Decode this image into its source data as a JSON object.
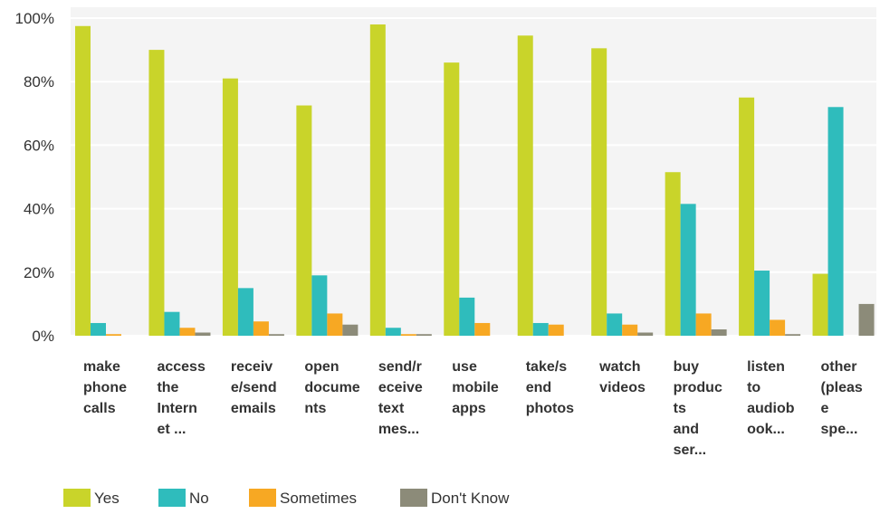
{
  "chart_data": {
    "type": "bar",
    "title": "",
    "xlabel": "",
    "ylabel": "",
    "ylim": [
      0,
      100
    ],
    "yticks": [
      "0%",
      "20%",
      "40%",
      "60%",
      "80%",
      "100%"
    ],
    "ytick_values": [
      0,
      20,
      40,
      60,
      80,
      100
    ],
    "grid": true,
    "legend_position": "bottom-left",
    "categories": [
      [
        "make",
        "phone",
        "calls"
      ],
      [
        "access",
        "the",
        "Intern",
        "et ..."
      ],
      [
        "receiv",
        "e/send",
        "emails"
      ],
      [
        "open",
        "docume",
        "nts"
      ],
      [
        "send/r",
        "eceive",
        "text",
        "mes..."
      ],
      [
        "use",
        "mobile",
        "apps"
      ],
      [
        "take/s",
        "end",
        "photos"
      ],
      [
        "watch",
        "videos"
      ],
      [
        "buy",
        "produc",
        "ts",
        "and",
        "ser..."
      ],
      [
        "listen",
        "to",
        "audiob",
        "ook..."
      ],
      [
        "other",
        "(pleas",
        "e",
        "spe..."
      ]
    ],
    "series": [
      {
        "name": "Yes",
        "color": "#c9d42a",
        "values": [
          97.5,
          90,
          81,
          72.5,
          98,
          86,
          94.5,
          90.5,
          51.5,
          75,
          19.5
        ]
      },
      {
        "name": "No",
        "color": "#2fbcbc",
        "values": [
          4,
          7.5,
          15,
          19,
          2.5,
          12,
          4,
          7,
          41.5,
          20.5,
          72
        ]
      },
      {
        "name": "Sometimes",
        "color": "#f7a823",
        "values": [
          0.5,
          2.5,
          4.5,
          7,
          0.5,
          4,
          3.5,
          3.5,
          7,
          5,
          0
        ]
      },
      {
        "name": "Don't Know",
        "color": "#8c8b79",
        "values": [
          0,
          1,
          0.5,
          3.5,
          0.5,
          0,
          0,
          1,
          2,
          0.5,
          10
        ]
      }
    ]
  }
}
